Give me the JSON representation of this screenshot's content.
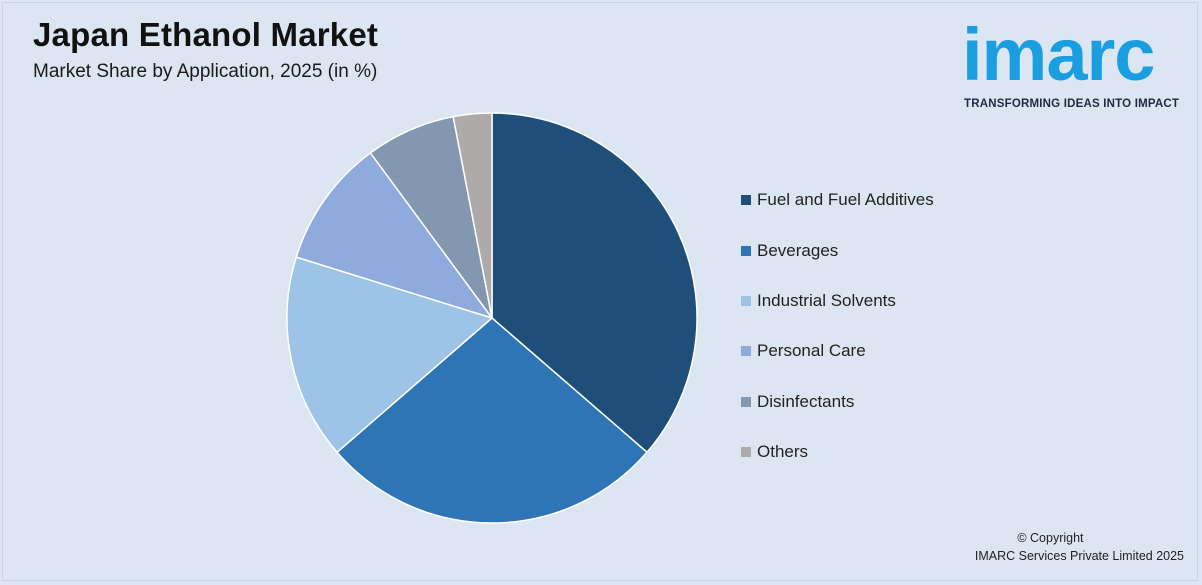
{
  "header": {
    "title": "Japan Ethanol Market",
    "subtitle": "Market Share by Application, 2025 (in %)"
  },
  "logo": {
    "word": "imarc",
    "tagline": "TRANSFORMING IDEAS INTO IMPACT"
  },
  "footer": {
    "copyright_line1": "© Copyright",
    "copyright_line2": "IMARC Services Private Limited 2025"
  },
  "chart_data": {
    "type": "pie",
    "title": "Japan Ethanol Market",
    "subtitle": "Market Share by Application, 2025 (in %)",
    "categories": [
      "Fuel and Fuel Additives",
      "Beverages",
      "Industrial Solvents",
      "Personal Care",
      "Disinfectants",
      "Others"
    ],
    "values": [
      36,
      27,
      16,
      10,
      7,
      3
    ],
    "colors": [
      "#1f4e79",
      "#2e75b6",
      "#9dc3e6",
      "#8faadc",
      "#8497b0",
      "#aeaaaa"
    ],
    "start_angle_deg": 0,
    "direction": "clockwise",
    "legend_position": "right"
  }
}
